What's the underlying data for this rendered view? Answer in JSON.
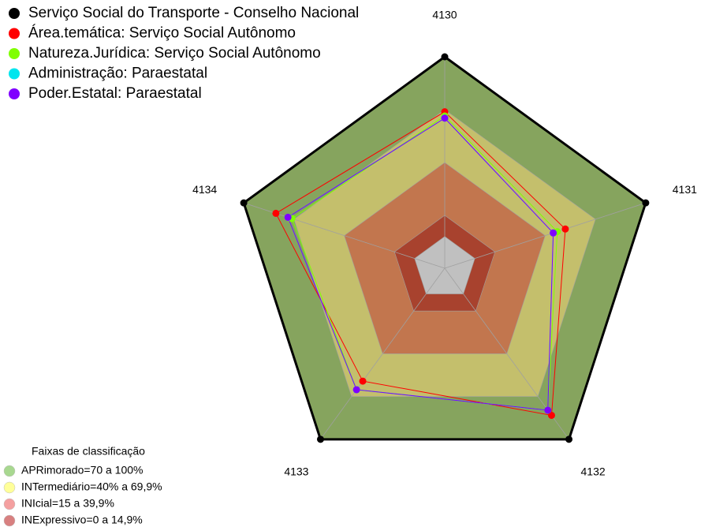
{
  "chart_data": {
    "type": "radar",
    "categories": [
      "4130",
      "4131",
      "4132",
      "4133",
      "4134"
    ],
    "rlim": [
      0,
      100
    ],
    "bands": [
      {
        "limit": 100,
        "color": "#86a45e"
      },
      {
        "limit": 75,
        "color": "#c4bf6c"
      },
      {
        "limit": 50,
        "color": "#c2764e"
      },
      {
        "limit": 25,
        "color": "#a8422e"
      },
      {
        "limit": 15,
        "color": "#c0c0c0"
      }
    ],
    "series": [
      {
        "name": "Serviço Social do Transporte - Conselho Nacional",
        "color": "#000000",
        "values": [
          100,
          100,
          100,
          100,
          100
        ]
      },
      {
        "name": "Área.temática: Serviço Social Autônomo",
        "color": "#ff0000",
        "values": [
          74,
          60,
          86,
          66,
          84
        ]
      },
      {
        "name": "Natureza.Jurídica: Serviço Social Autônomo",
        "color": "#80ff00",
        "values": [
          72,
          56,
          83,
          71,
          76
        ]
      },
      {
        "name": "Administração: Paraestatal",
        "color": "#00e5ee",
        "values": [
          71,
          54,
          83,
          71,
          78
        ]
      },
      {
        "name": "Poder.Estatal: Paraestatal",
        "color": "#8000ff",
        "values": [
          71,
          54,
          83,
          71,
          78
        ]
      }
    ],
    "bands_legend": {
      "title": "Faixas de classificação",
      "items": [
        {
          "label": "APRimorado=70 a 100%",
          "color": "#a8d890"
        },
        {
          "label": "INTermediário=40% a 69,9%",
          "color": "#ffff99"
        },
        {
          "label": "INIcial=15 a 39,9%",
          "color": "#f4a0a0"
        },
        {
          "label": "INExpressivo=0 a 14,9%",
          "color": "#d88080"
        }
      ]
    }
  }
}
